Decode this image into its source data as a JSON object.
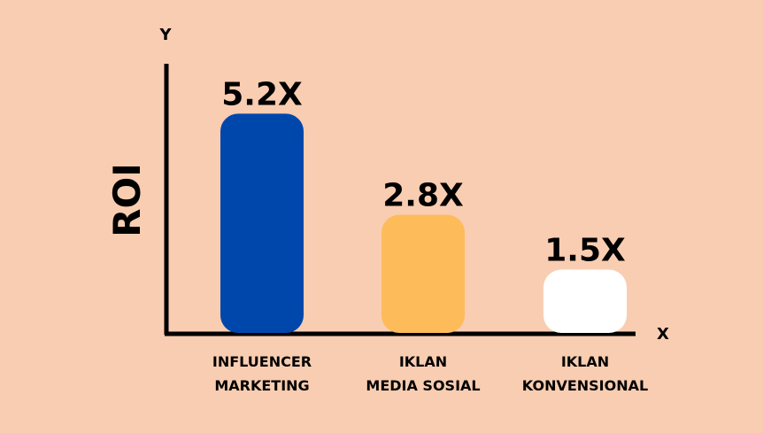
{
  "chart_data": {
    "type": "bar",
    "title": "",
    "xlabel": "",
    "ylabel": "ROI",
    "x_axis_marker": "X",
    "y_axis_marker": "Y",
    "categories": [
      [
        "INFLUENCER",
        "MARKETING"
      ],
      [
        "IKLAN",
        "MEDIA SOSIAL"
      ],
      [
        "IKLAN",
        "KONVENSIONAL"
      ]
    ],
    "values": [
      5.2,
      2.8,
      1.5
    ],
    "value_labels": [
      "5.2X",
      "2.8X",
      "1.5X"
    ],
    "bar_colors": [
      "#0047AB",
      "#FDBB5A",
      "#FFFFFF"
    ],
    "ylim": [
      0,
      5.9
    ],
    "grid": false,
    "legend": "none",
    "background": "#F9CDB1",
    "axis_color": "#000000"
  }
}
